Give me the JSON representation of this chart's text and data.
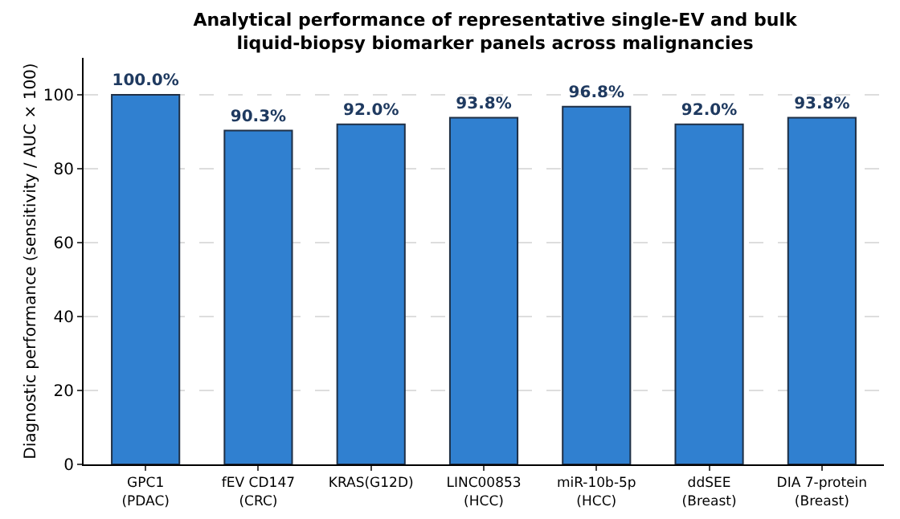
{
  "chart_data": {
    "type": "bar",
    "title": "Analytical performance of representative single-EV and bulk\nliquid-biopsy biomarker panels across malignancies",
    "ylabel": "Diagnostic performance (sensitivity / AUC × 100)",
    "categories": [
      "GPC1\n(PDAC)",
      "fEV CD147\n(CRC)",
      "KRAS(G12D)",
      "LINC00853\n(HCC)",
      "miR-10b-5p\n(HCC)",
      "ddSEE\n(Breast)",
      "DIA 7-protein\n(Breast)"
    ],
    "values": [
      100.0,
      90.3,
      92.0,
      93.8,
      96.8,
      92.0,
      93.8
    ],
    "value_labels": [
      "100.0%",
      "90.3%",
      "92.0%",
      "93.8%",
      "96.8%",
      "92.0%",
      "93.8%"
    ],
    "color": "#3080d0",
    "ylim": [
      0,
      110
    ],
    "yticks": [
      0,
      20,
      40,
      60,
      80,
      100
    ],
    "grid": "y"
  }
}
